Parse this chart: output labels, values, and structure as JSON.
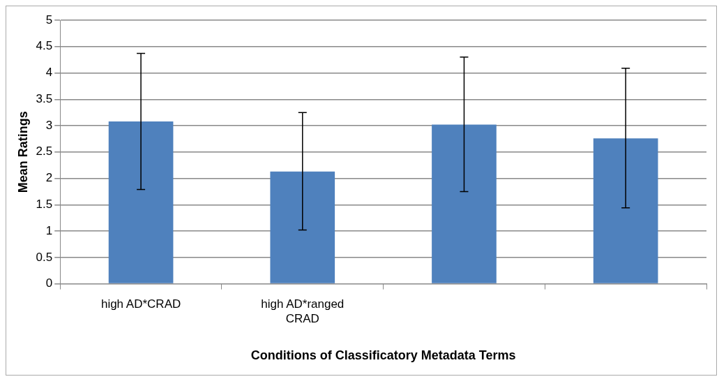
{
  "chart_data": {
    "type": "bar",
    "xlabel": "Conditions of Classificatory Metadata Terms",
    "ylabel": "Mean Ratings",
    "categories": [
      "high AD*CRAD",
      "high AD*ranged CRAD",
      null,
      null
    ],
    "values": [
      3.08,
      2.13,
      3.02,
      2.76
    ],
    "color": "#4f81bd",
    "errors": [
      [
        1.79,
        4.37
      ],
      [
        1.02,
        3.25
      ],
      [
        1.75,
        4.3
      ],
      [
        1.44,
        4.09
      ]
    ],
    "ylim": [
      0,
      5
    ],
    "yticks": [
      0,
      0.5,
      1,
      1.5,
      2,
      2.5,
      3,
      3.5,
      4,
      4.5,
      5
    ],
    "grid": "y",
    "legend": false
  }
}
